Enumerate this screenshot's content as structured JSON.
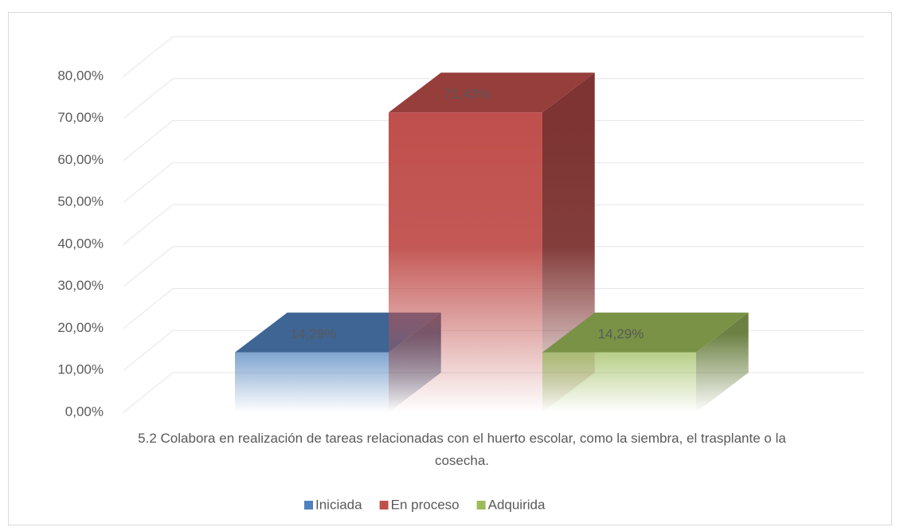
{
  "chart_data": {
    "type": "bar3d",
    "categories": [
      "5.2 Colabora en realización de tareas relacionadas con el huerto escolar, como la siembra, el trasplante o la cosecha."
    ],
    "series": [
      {
        "name": "Iniciada",
        "color": "#4f81bd",
        "values": [
          14.29
        ],
        "value_labels": [
          "14,29%"
        ]
      },
      {
        "name": "En proceso",
        "color": "#c0504d",
        "values": [
          71.43
        ],
        "value_labels": [
          "71,43%"
        ]
      },
      {
        "name": "Adquirida",
        "color": "#9bbb59",
        "values": [
          14.29
        ],
        "value_labels": [
          "14,29%"
        ]
      }
    ],
    "ylim": [
      0,
      80
    ],
    "yticks": [
      {
        "value": 0,
        "label": "0,00%"
      },
      {
        "value": 10,
        "label": "10,00%"
      },
      {
        "value": 20,
        "label": "20,00%"
      },
      {
        "value": 30,
        "label": "30,00%"
      },
      {
        "value": 40,
        "label": "40,00%"
      },
      {
        "value": 50,
        "label": "50,00%"
      },
      {
        "value": 60,
        "label": "60,00%"
      },
      {
        "value": 70,
        "label": "70,00%"
      },
      {
        "value": 80,
        "label": "80,00%"
      }
    ],
    "grid": true,
    "legend": "bottom"
  }
}
